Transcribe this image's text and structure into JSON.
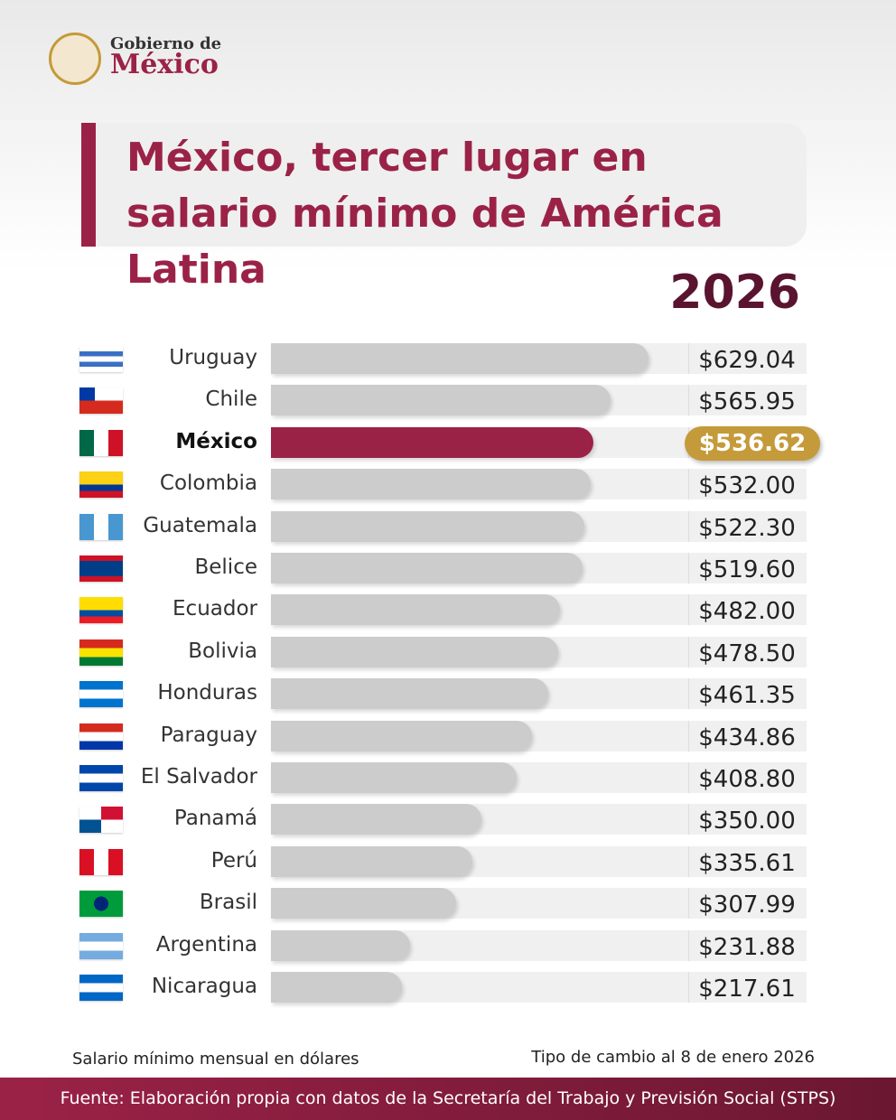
{
  "header": {
    "logo_line1": "Gobierno de",
    "logo_line2": "México"
  },
  "chart_data": {
    "type": "bar",
    "orientation": "horizontal",
    "title": "México, tercer lugar en salario mínimo de América Latina",
    "subtitle": "2026",
    "categories": [
      "Uruguay",
      "Chile",
      "México",
      "Colombia",
      "Guatemala",
      "Belice",
      "Ecuador",
      "Bolivia",
      "Honduras",
      "Paraguay",
      "El Salvador",
      "Panamá",
      "Perú",
      "Brasil",
      "Argentina",
      "Nicaragua"
    ],
    "values": [
      629.04,
      565.95,
      536.62,
      532.0,
      522.3,
      519.6,
      482.0,
      478.5,
      461.35,
      434.86,
      408.8,
      350.0,
      335.61,
      307.99,
      231.88,
      217.61
    ],
    "value_labels": [
      "$629.04",
      "$565.95",
      "$536.62",
      "$532.00",
      "$522.30",
      "$519.60",
      "$482.00",
      "$478.50",
      "$461.35",
      "$434.86",
      "$408.80",
      "$350.00",
      "$335.61",
      "$307.99",
      "$231.88",
      "$217.61"
    ],
    "color": "#cccccc",
    "highlight_category": "México",
    "highlight_color": "#9b2247",
    "highlight_label_color": "#c49a3a",
    "note_left": "Salario mínimo mensual en dólares",
    "note_right": "Tipo de cambio al 8 de enero 2026",
    "source": "Fuente: Elaboración propia con datos de la Secretaría del Trabajo y Previsión Social (STPS)"
  }
}
